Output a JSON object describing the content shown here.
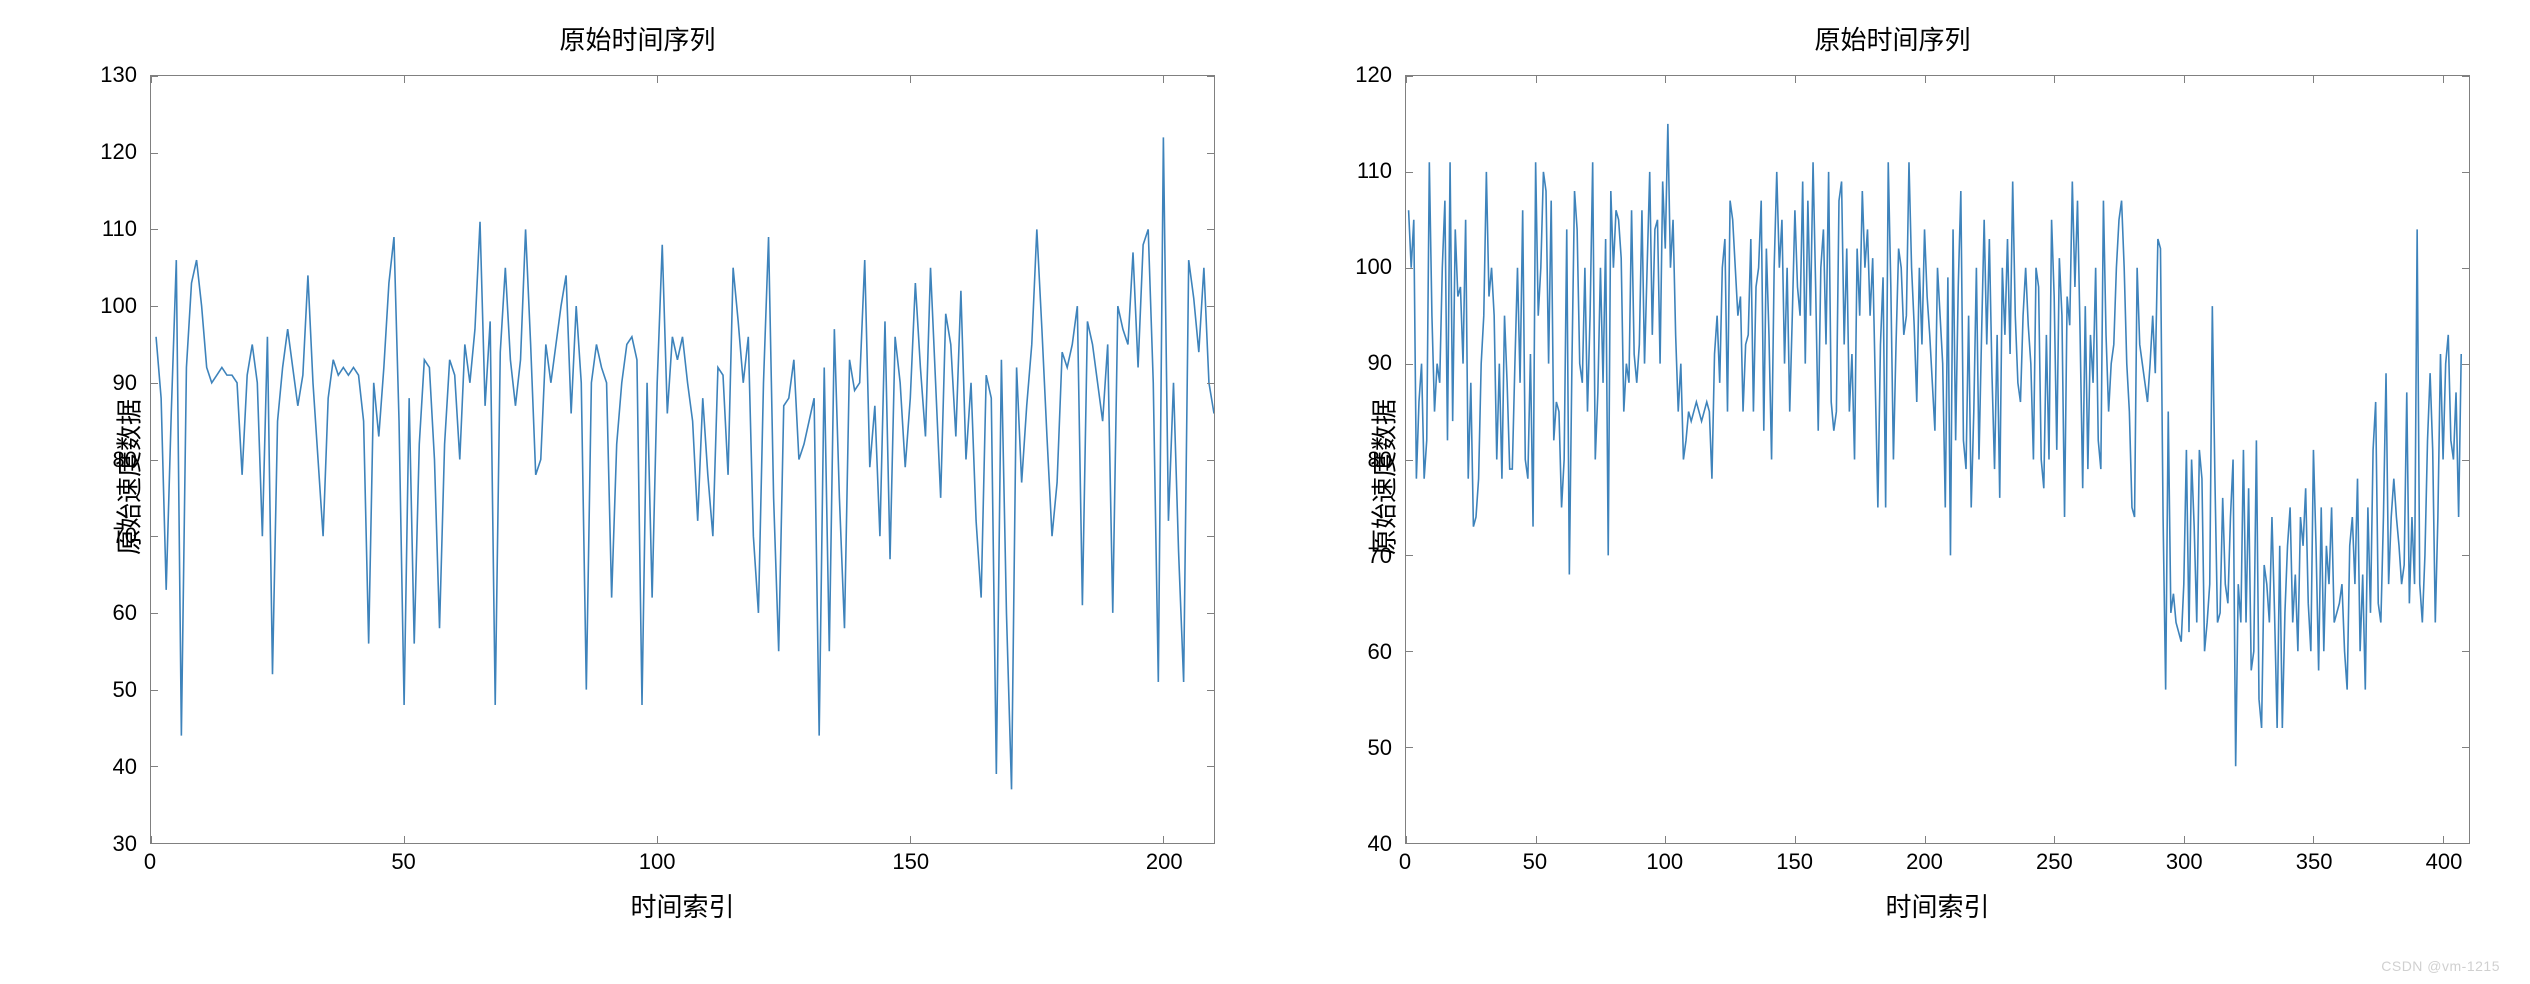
{
  "background_color": "#ffffff",
  "line_color": "#3E83BB",
  "axis_color": "#808080",
  "text_color": "#000000",
  "title_fontsize": 26,
  "label_fontsize": 26,
  "tick_fontsize": 22,
  "line_width": 1.6,
  "watermark": "CSDN @vm-1215",
  "chart_left": {
    "type": "line",
    "title": "原始时间序列",
    "xlabel": "时间索引",
    "ylabel": "原始速度数据",
    "xlim": [
      0,
      210
    ],
    "ylim": [
      30,
      130
    ],
    "xticks": [
      0,
      50,
      100,
      150,
      200
    ],
    "yticks": [
      30,
      40,
      50,
      60,
      70,
      80,
      90,
      100,
      110,
      120,
      130
    ],
    "values": [
      96,
      88,
      63,
      86,
      106,
      44,
      92,
      103,
      106,
      100,
      92,
      90,
      91,
      92,
      91,
      91,
      90,
      78,
      91,
      95,
      90,
      70,
      96,
      52,
      85,
      92,
      97,
      92,
      87,
      91,
      104,
      90,
      80,
      70,
      88,
      93,
      91,
      92,
      91,
      92,
      91,
      85,
      56,
      90,
      83,
      92,
      103,
      109,
      85,
      48,
      88,
      56,
      82,
      93,
      92,
      80,
      58,
      82,
      93,
      91,
      80,
      95,
      90,
      97,
      111,
      87,
      98,
      48,
      94,
      105,
      93,
      87,
      93,
      110,
      95,
      78,
      80,
      95,
      90,
      95,
      100,
      104,
      86,
      100,
      90,
      50,
      90,
      95,
      92,
      90,
      62,
      82,
      90,
      95,
      96,
      93,
      48,
      90,
      62,
      90,
      108,
      86,
      96,
      93,
      96,
      90,
      85,
      72,
      88,
      78,
      70,
      92,
      91,
      78,
      105,
      98,
      90,
      96,
      70,
      60,
      90,
      109,
      75,
      55,
      87,
      88,
      93,
      80,
      82,
      85,
      88,
      44,
      92,
      55,
      97,
      75,
      58,
      93,
      89,
      90,
      106,
      79,
      87,
      70,
      98,
      67,
      96,
      90,
      79,
      88,
      103,
      92,
      83,
      105,
      90,
      75,
      99,
      95,
      83,
      102,
      80,
      90,
      72,
      62,
      91,
      88,
      39,
      93,
      60,
      37,
      92,
      77,
      87,
      95,
      110,
      97,
      83,
      70,
      77,
      94,
      92,
      95,
      100,
      61,
      98,
      95,
      90,
      85,
      95,
      60,
      100,
      97,
      95,
      107,
      92,
      108,
      110,
      90,
      51,
      122,
      72,
      90,
      68,
      51,
      106,
      101,
      94,
      105,
      90,
      86
    ]
  },
  "chart_right": {
    "type": "line",
    "title": "原始时间序列",
    "xlabel": "时间索引",
    "ylabel": "原始速度数据",
    "xlim": [
      0,
      410
    ],
    "ylim": [
      40,
      120
    ],
    "xticks": [
      0,
      50,
      100,
      150,
      200,
      250,
      300,
      350,
      400
    ],
    "yticks": [
      40,
      50,
      60,
      70,
      80,
      90,
      100,
      110,
      120
    ],
    "values": [
      106,
      100,
      105,
      78,
      86,
      90,
      78,
      82,
      111,
      95,
      85,
      90,
      88,
      100,
      107,
      82,
      111,
      84,
      104,
      97,
      98,
      90,
      105,
      78,
      88,
      73,
      74,
      78,
      90,
      95,
      110,
      97,
      100,
      95,
      80,
      90,
      78,
      95,
      88,
      79,
      79,
      90,
      100,
      88,
      106,
      80,
      78,
      91,
      73,
      111,
      95,
      100,
      110,
      108,
      90,
      107,
      82,
      86,
      85,
      75,
      80,
      104,
      68,
      90,
      108,
      104,
      90,
      88,
      100,
      85,
      95,
      111,
      80,
      87,
      100,
      88,
      103,
      70,
      108,
      100,
      106,
      105,
      101,
      85,
      90,
      88,
      106,
      91,
      88,
      92,
      106,
      90,
      100,
      110,
      93,
      104,
      105,
      90,
      109,
      102,
      115,
      100,
      105,
      93,
      85,
      90,
      80,
      82,
      85,
      84,
      85,
      86,
      85,
      84,
      85,
      86,
      85,
      78,
      91,
      95,
      88,
      100,
      103,
      85,
      107,
      105,
      100,
      95,
      97,
      85,
      92,
      93,
      103,
      85,
      98,
      100,
      107,
      83,
      102,
      93,
      80,
      100,
      110,
      100,
      105,
      90,
      100,
      85,
      95,
      106,
      98,
      95,
      109,
      90,
      107,
      95,
      111,
      98,
      83,
      100,
      104,
      92,
      110,
      86,
      83,
      85,
      107,
      109,
      92,
      102,
      85,
      91,
      80,
      102,
      95,
      108,
      100,
      104,
      95,
      101,
      88,
      75,
      92,
      99,
      75,
      111,
      98,
      80,
      92,
      102,
      100,
      93,
      95,
      111,
      100,
      94,
      86,
      100,
      92,
      104,
      97,
      93,
      88,
      83,
      100,
      95,
      90,
      75,
      99,
      70,
      104,
      82,
      98,
      108,
      82,
      79,
      95,
      75,
      85,
      100,
      80,
      93,
      105,
      92,
      103,
      89,
      79,
      93,
      76,
      100,
      93,
      103,
      91,
      109,
      95,
      88,
      86,
      95,
      100,
      94,
      90,
      80,
      100,
      98,
      80,
      77,
      93,
      80,
      105,
      97,
      81,
      101,
      95,
      74,
      97,
      94,
      109,
      98,
      107,
      93,
      77,
      96,
      79,
      93,
      88,
      100,
      82,
      79,
      107,
      93,
      85,
      90,
      92,
      100,
      105,
      107,
      100,
      90,
      85,
      75,
      74,
      100,
      92,
      90,
      88,
      86,
      90,
      95,
      89,
      103,
      102,
      74,
      56,
      85,
      64,
      66,
      63,
      62,
      61,
      67,
      81,
      62,
      80,
      73,
      63,
      81,
      78,
      60,
      63,
      67,
      96,
      78,
      63,
      64,
      76,
      67,
      65,
      74,
      80,
      48,
      67,
      63,
      81,
      63,
      77,
      58,
      60,
      82,
      55,
      52,
      69,
      67,
      63,
      74,
      64,
      52,
      71,
      52,
      64,
      71,
      75,
      63,
      68,
      60,
      74,
      71,
      77,
      65,
      60,
      81,
      71,
      58,
      75,
      60,
      71,
      67,
      75,
      63,
      64,
      65,
      67,
      60,
      56,
      71,
      74,
      67,
      78,
      60,
      68,
      56,
      75,
      64,
      81,
      86,
      65,
      63,
      74,
      89,
      67,
      74,
      78,
      74,
      71,
      67,
      69,
      87,
      65,
      74,
      67,
      104,
      67,
      63,
      70,
      82,
      89,
      81,
      63,
      74,
      91,
      80,
      90,
      93,
      82,
      80,
      87,
      74,
      91
    ]
  }
}
